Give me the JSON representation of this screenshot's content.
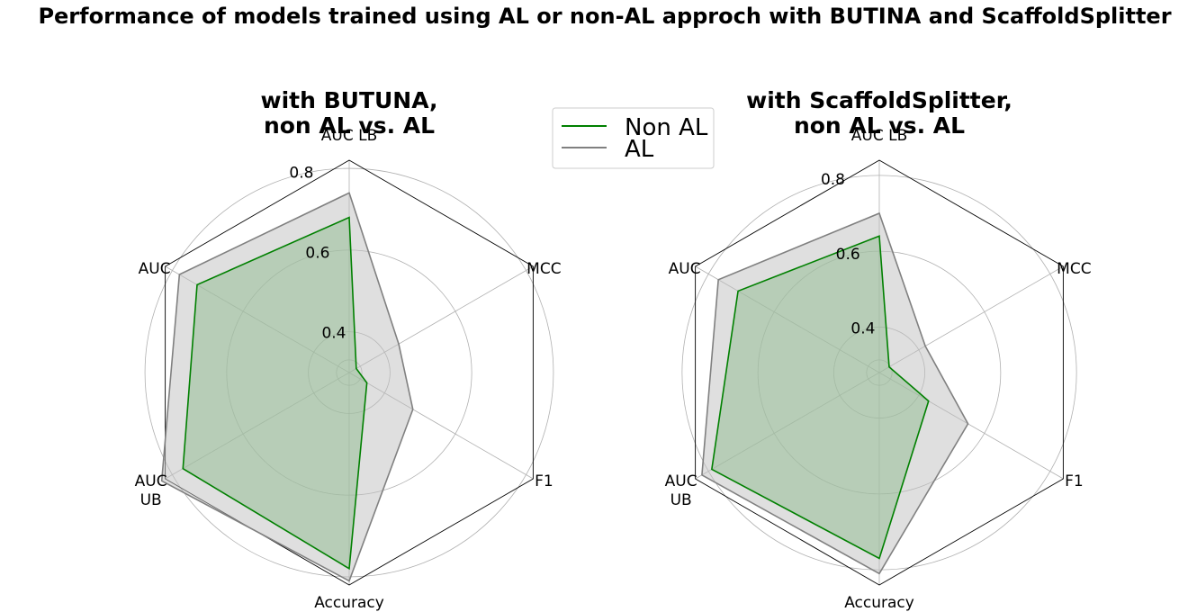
{
  "suptitle": "Performance of models trained using AL or non-AL approch with BUTINA and ScaffoldSplitter",
  "legend": {
    "placement": "top-center",
    "entries": [
      {
        "label": "Non AL",
        "color": "#008000"
      },
      {
        "label": "AL",
        "color": "#808080"
      }
    ]
  },
  "chart_data": [
    {
      "type": "radar",
      "title_lines": [
        "with BUTUNA,",
        "non AL vs. AL"
      ],
      "axes": [
        "AUC LB",
        "MCC",
        "F1",
        "Accuracy",
        "AUC UB",
        "AUC"
      ],
      "axis_label_lines": [
        [
          "AUC LB"
        ],
        [
          "MCC"
        ],
        [
          "F1"
        ],
        [
          "Accuracy"
        ],
        [
          "AUC",
          "UB"
        ],
        [
          "AUC"
        ]
      ],
      "rlim": [
        0.3,
        0.82
      ],
      "rticks": [
        0.4,
        0.6,
        0.8
      ],
      "rtick_labels": [
        "0.4",
        "0.6",
        "0.8"
      ],
      "grid": true,
      "series": [
        {
          "name": "AL",
          "color": "#808080",
          "fill": "#bfbfbf",
          "values": [
            0.74,
            0.44,
            0.48,
            0.81,
            0.83,
            0.78
          ]
        },
        {
          "name": "Non AL",
          "color": "#008000",
          "fill": "#8fbc8f",
          "values": [
            0.68,
            0.32,
            0.35,
            0.78,
            0.77,
            0.73
          ]
        }
      ]
    },
    {
      "type": "radar",
      "title_lines": [
        "with ScaffoldSplitter,",
        "non AL vs. AL"
      ],
      "axes": [
        "AUC LB",
        "MCC",
        "F1",
        "Accuracy",
        "AUC UB",
        "AUC"
      ],
      "axis_label_lines": [
        [
          "AUC LB"
        ],
        [
          "MCC"
        ],
        [
          "F1"
        ],
        [
          "Accuracy"
        ],
        [
          "AUC",
          "UB"
        ],
        [
          "AUC"
        ]
      ],
      "rlim": [
        0.28,
        0.84
      ],
      "rticks": [
        0.4,
        0.6,
        0.8
      ],
      "rtick_labels": [
        "0.4",
        "0.6",
        "0.8"
      ],
      "grid": true,
      "series": [
        {
          "name": "AL",
          "color": "#808080",
          "fill": "#bfbfbf",
          "values": [
            0.7,
            0.42,
            0.55,
            0.81,
            0.82,
            0.77
          ]
        },
        {
          "name": "Non AL",
          "color": "#008000",
          "fill": "#8fbc8f",
          "values": [
            0.64,
            0.31,
            0.43,
            0.77,
            0.79,
            0.71
          ]
        }
      ]
    }
  ]
}
